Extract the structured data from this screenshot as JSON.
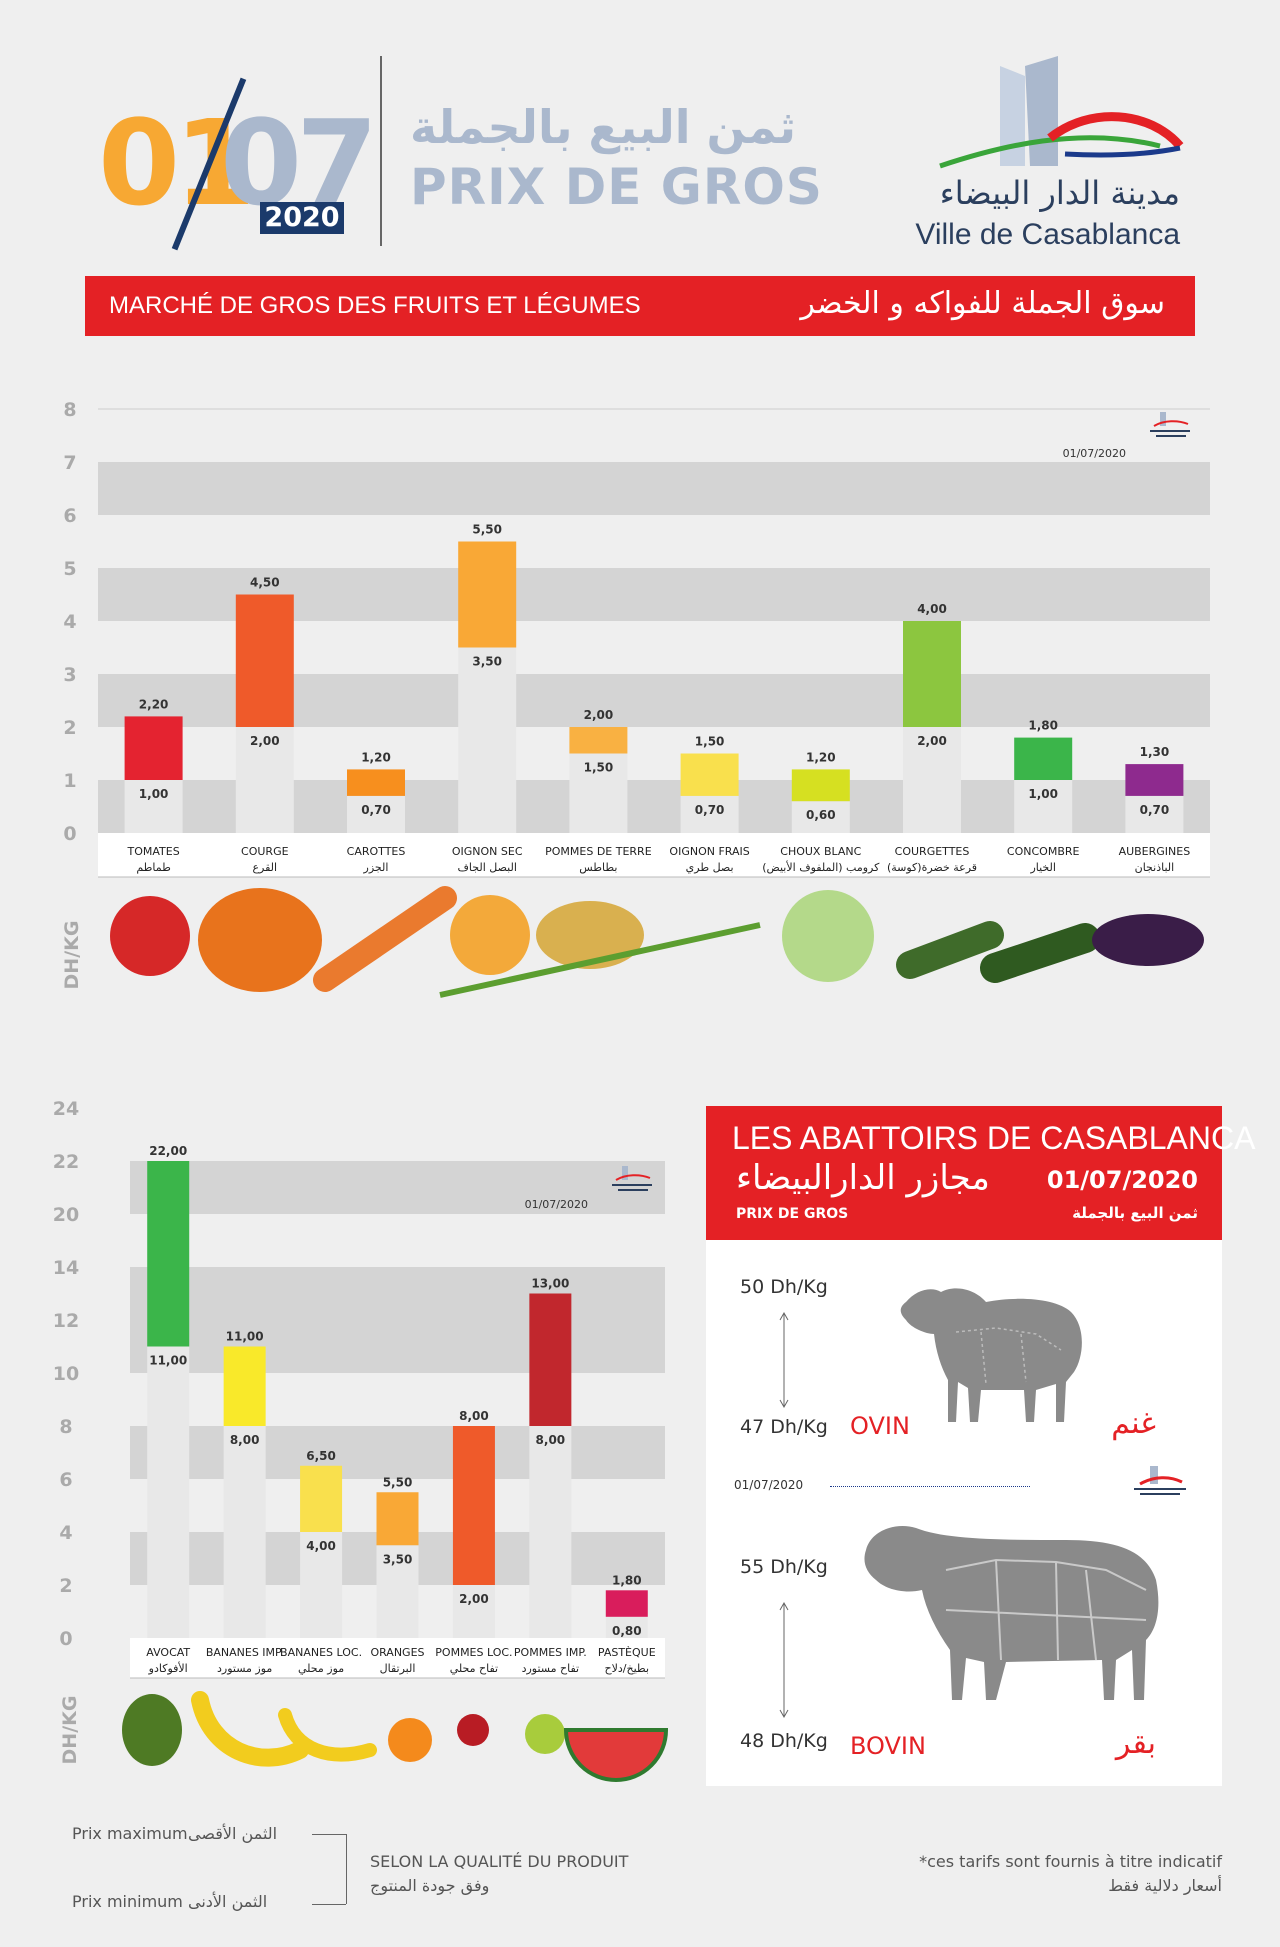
{
  "header": {
    "day": "01",
    "month": "07",
    "year": "2020",
    "title_ar": "ثمن البيع بالجملة",
    "title_fr": "PRIX DE GROS",
    "logo_ar": "مدينة  الدار البيضاء",
    "logo_fr": "Ville de Casablanca"
  },
  "banner": {
    "fr": "MARCHÉ DE GROS DES FRUITS ET LÉGUMES",
    "ar": "سوق الجملة للفواكه و الخضر"
  },
  "vegetables": {
    "chart_data": {
      "type": "bar",
      "ylabel": "DH/KG",
      "ylim": [
        0,
        8
      ],
      "yticks": [
        "0",
        "1",
        "2",
        "3",
        "4",
        "5",
        "6",
        "7",
        "8"
      ],
      "date_stamp": "01/07/2020",
      "grid": true,
      "categories": [
        {
          "fr": "TOMATES",
          "ar": "طماطم",
          "min": 1.0,
          "max": 2.2,
          "min_label": "1,00",
          "max_label": "2,20",
          "color": "#e42330"
        },
        {
          "fr": "COURGE",
          "ar": "القرع",
          "min": 2.0,
          "max": 4.5,
          "min_label": "2,00",
          "max_label": "4,50",
          "color": "#ef5a2a"
        },
        {
          "fr": "CAROTTES",
          "ar": "الجزر",
          "min": 0.7,
          "max": 1.2,
          "min_label": "0,70",
          "max_label": "1,20",
          "color": "#f78f1e"
        },
        {
          "fr": "OIGNON SEC",
          "ar": "البصل الجاف",
          "min": 3.5,
          "max": 5.5,
          "min_label": "3,50",
          "max_label": "5,50",
          "color": "#f9a836"
        },
        {
          "fr": "POMMES DE TERRE",
          "ar": "بطاطس",
          "min": 1.5,
          "max": 2.0,
          "min_label": "1,50",
          "max_label": "2,00",
          "color": "#f9b142"
        },
        {
          "fr": "OIGNON FRAIS",
          "ar": "بصل طري",
          "min": 0.7,
          "max": 1.5,
          "min_label": "0,70",
          "max_label": "1,50",
          "color": "#f9e04d"
        },
        {
          "fr": "CHOUX BLANC",
          "ar": "كرومب (الملفوف الأبيض)",
          "min": 0.6,
          "max": 1.2,
          "min_label": "0,60",
          "max_label": "1,20",
          "color": "#d6e021"
        },
        {
          "fr": "COURGETTES",
          "ar": "قرعة خضرة(كوسة)",
          "min": 2.0,
          "max": 4.0,
          "min_label": "2,00",
          "max_label": "4,00",
          "color": "#8cc63f"
        },
        {
          "fr": "CONCOMBRE",
          "ar": "الخيار",
          "min": 1.0,
          "max": 1.8,
          "min_label": "1,00",
          "max_label": "1,80",
          "color": "#3bb54a"
        },
        {
          "fr": "AUBERGINES",
          "ar": "الباذنجان",
          "min": 0.7,
          "max": 1.3,
          "min_label": "0,70",
          "max_label": "1,30",
          "color": "#8e2a8e"
        }
      ]
    }
  },
  "fruits": {
    "chart_data": {
      "type": "bar",
      "ylabel": "DH/KG",
      "yticks": [
        {
          "label": "0",
          "value": 0
        },
        {
          "label": "2",
          "value": 2
        },
        {
          "label": "4",
          "value": 4
        },
        {
          "label": "6",
          "value": 6
        },
        {
          "label": "8",
          "value": 8
        },
        {
          "label": "10",
          "value": 10
        },
        {
          "label": "12",
          "value": 12
        },
        {
          "label": "14",
          "value": 14
        },
        {
          "label": "20",
          "value": 20
        },
        {
          "label": "22",
          "value": 22
        },
        {
          "label": "24",
          "value": 24
        }
      ],
      "axis_break": "14-20",
      "date_stamp": "01/07/2020",
      "grid": true,
      "categories": [
        {
          "fr": "AVOCAT",
          "ar": "الأفوكادو",
          "min": 11.0,
          "max": 22.0,
          "min_label": "11,00",
          "max_label": "22,00",
          "color": "#3bb54a"
        },
        {
          "fr": "BANANES IMP.",
          "ar": "موز مستورد",
          "min": 8.0,
          "max": 11.0,
          "min_label": "8,00",
          "max_label": "11,00",
          "color": "#f9e92a"
        },
        {
          "fr": "BANANES LOC.",
          "ar": "موز محلي",
          "min": 4.0,
          "max": 6.5,
          "min_label": "4,00",
          "max_label": "6,50",
          "color": "#f9e04d"
        },
        {
          "fr": "ORANGES",
          "ar": "البرتقال",
          "min": 3.5,
          "max": 5.5,
          "min_label": "3,50",
          "max_label": "5,50",
          "color": "#f9a836"
        },
        {
          "fr": "POMMES LOC.",
          "ar": "تفاح محلي",
          "min": 2.0,
          "max": 8.0,
          "min_label": "2,00",
          "max_label": "8,00",
          "color": "#ef5a2a"
        },
        {
          "fr": "POMMES IMP.",
          "ar": "تفاح مستورد",
          "min": 8.0,
          "max": 13.0,
          "min_label": "8,00",
          "max_label": "13,00",
          "color": "#c1272d"
        },
        {
          "fr": "PASTÈQUE",
          "ar": "بطيخ/دلاح",
          "min": 0.8,
          "max": 1.8,
          "min_label": "0,80",
          "max_label": "1,80",
          "color": "#d91d5c"
        }
      ]
    }
  },
  "abattoirs": {
    "title": "LES ABATTOIRS DE CASABLANCA",
    "title_ar": "مجازر الدارالبيضاء",
    "date": "01/07/2020",
    "prix_fr": "PRIX DE GROS",
    "prix_ar": "ثمن البيع بالجملة",
    "stamp_date": "01/07/2020",
    "ovin": {
      "name": "OVIN",
      "name_ar": "غنم",
      "max": "50 Dh/Kg",
      "min": "47 Dh/Kg"
    },
    "bovin": {
      "name": "BOVIN",
      "name_ar": "بقر",
      "max": "55 Dh/Kg",
      "min": "48 Dh/Kg"
    }
  },
  "legend": {
    "max_fr": "Prix maximum",
    "max_ar": "الثمن الأقصى",
    "min_fr": "Prix minimum",
    "min_ar": "الثمن الأدنى",
    "quality_fr": "SELON LA QUALITÉ DU PRODUIT",
    "quality_ar": "وفق جودة المنتوج"
  },
  "footnote": {
    "fr": "*ces tarifs sont fournis à titre indicatif",
    "ar": "أسعار دلالية فقط"
  }
}
